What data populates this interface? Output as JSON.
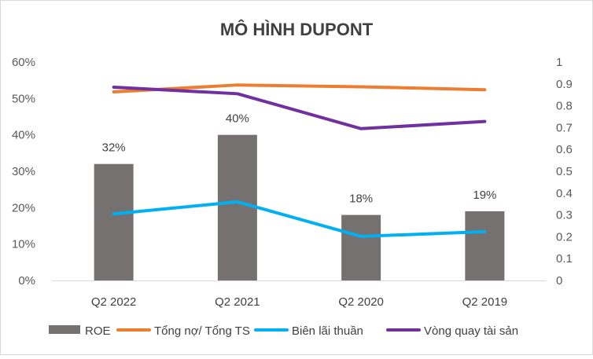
{
  "chart_data": {
    "type": "bar+line",
    "title": "MÔ HÌNH DUPONT",
    "categories": [
      "Q2 2022",
      "Q2 2021",
      "Q2 2020",
      "Q2 2019"
    ],
    "left_axis": {
      "ylim": [
        0,
        0.6
      ],
      "ticks": [
        0,
        0.1,
        0.2,
        0.3,
        0.4,
        0.5,
        0.6
      ],
      "tick_labels": [
        "0%",
        "10%",
        "20%",
        "30%",
        "40%",
        "50%",
        "60%"
      ]
    },
    "right_axis": {
      "ylim": [
        0,
        1
      ],
      "ticks": [
        0,
        0.1,
        0.2,
        0.3,
        0.4,
        0.5,
        0.6,
        0.7,
        0.8,
        0.9,
        1
      ],
      "tick_labels": [
        "0",
        "0.1",
        "0.2",
        "0.3",
        "0.4",
        "0.5",
        "0.6",
        "0.7",
        "0.8",
        "0.9",
        "1"
      ]
    },
    "series": [
      {
        "name": "ROE",
        "kind": "bar",
        "axis": "left",
        "color": "#767171",
        "values": [
          0.32,
          0.4,
          0.18,
          0.19
        ],
        "data_labels": [
          "32%",
          "40%",
          "18%",
          "19%"
        ]
      },
      {
        "name": "Tổng nợ/ Tổng TS",
        "kind": "line",
        "axis": "left",
        "color": "#ED7D31",
        "values": [
          0.518,
          0.537,
          0.532,
          0.524
        ]
      },
      {
        "name": "Biên lãi thuần",
        "kind": "line",
        "axis": "left",
        "color": "#00B0F0",
        "values": [
          0.183,
          0.216,
          0.121,
          0.134
        ]
      },
      {
        "name": "Vòng quay tài sản",
        "kind": "line",
        "axis": "right",
        "color": "#7030A0",
        "values": [
          0.885,
          0.855,
          0.695,
          0.728
        ]
      }
    ],
    "legend_position": "bottom",
    "grid": false
  }
}
